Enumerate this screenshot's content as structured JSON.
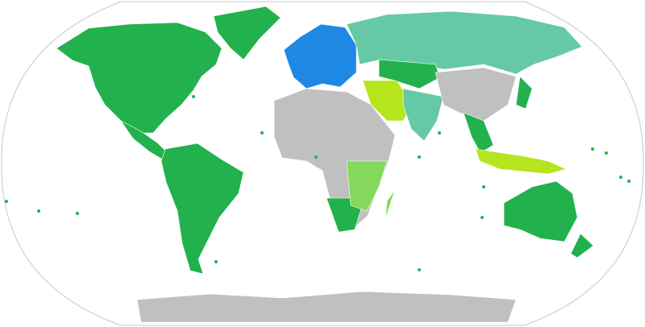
{
  "map": {
    "projection": "robinson",
    "colors": {
      "ocean": "#ffffff",
      "border": "#c8c8c8",
      "dark_green": "#22b14c",
      "teal": "#66c9a6",
      "lime": "#b5e61d",
      "light_green": "#84d85b",
      "blue": "#1e88e5",
      "gray": "#c0c0c0"
    },
    "regions": [
      {
        "name": "north-america",
        "color": "dark_green"
      },
      {
        "name": "greenland",
        "color": "dark_green"
      },
      {
        "name": "central-america",
        "color": "dark_green"
      },
      {
        "name": "south-america",
        "color": "dark_green"
      },
      {
        "name": "europe",
        "color": "blue"
      },
      {
        "name": "russia",
        "color": "teal"
      },
      {
        "name": "africa",
        "color": "gray"
      },
      {
        "name": "southern-africa",
        "color": "dark_green"
      },
      {
        "name": "east-africa",
        "color": "light_green"
      },
      {
        "name": "middle-east",
        "color": "lime"
      },
      {
        "name": "central-asia",
        "color": "dark_green"
      },
      {
        "name": "india",
        "color": "teal"
      },
      {
        "name": "china",
        "color": "gray"
      },
      {
        "name": "japan",
        "color": "dark_green"
      },
      {
        "name": "southeast-asia",
        "color": "dark_green"
      },
      {
        "name": "indonesia",
        "color": "lime"
      },
      {
        "name": "australia",
        "color": "dark_green"
      },
      {
        "name": "new-zealand",
        "color": "dark_green"
      },
      {
        "name": "madagascar",
        "color": "light_green"
      },
      {
        "name": "antarctica",
        "color": "gray"
      }
    ]
  }
}
